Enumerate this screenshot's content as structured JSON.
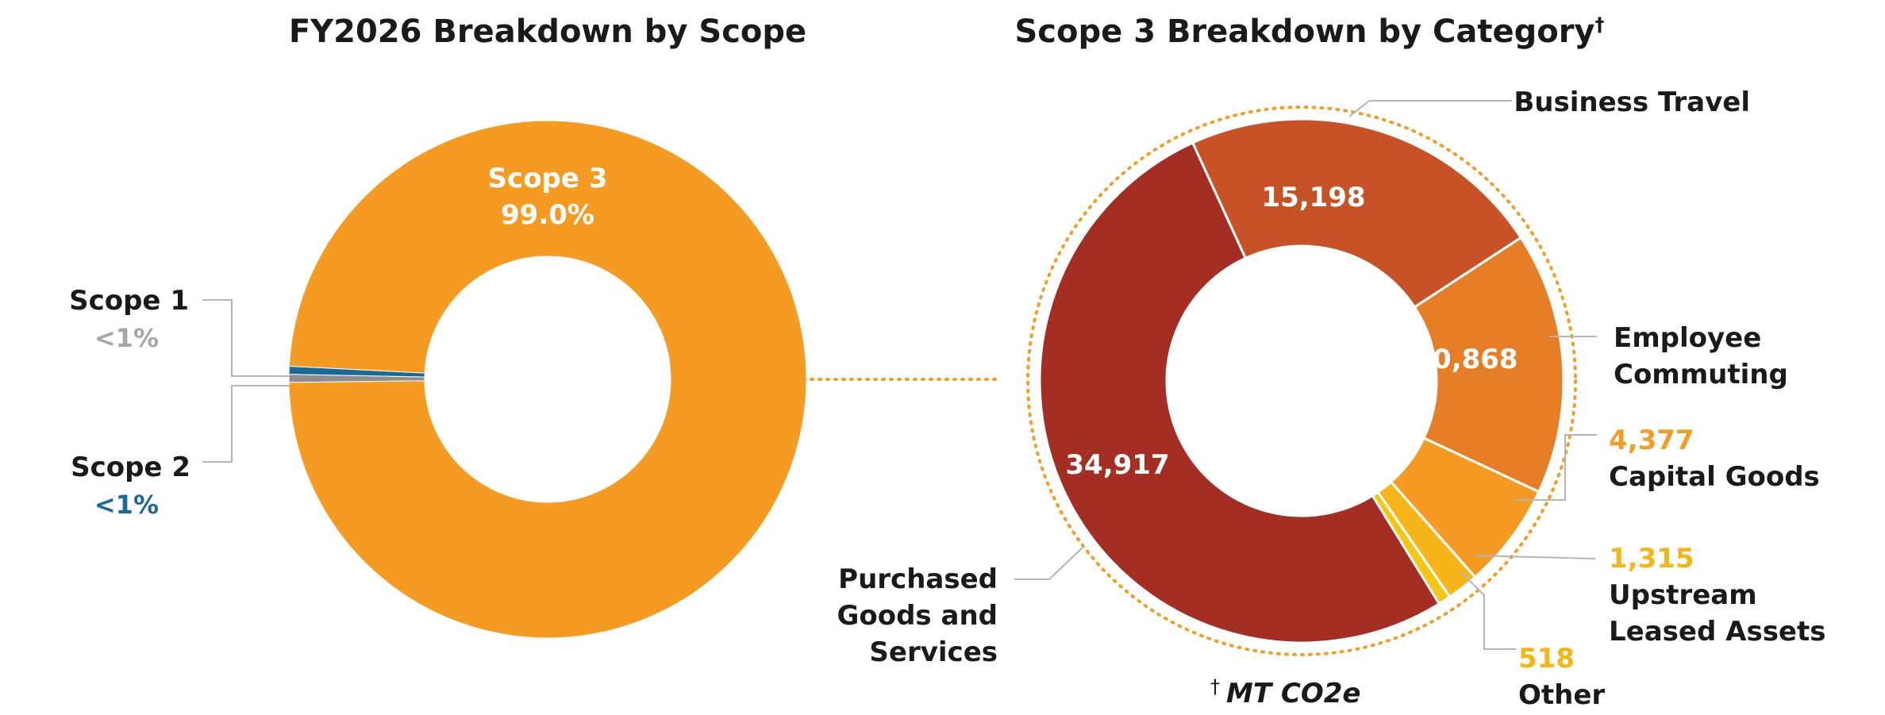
{
  "chart_data": [
    {
      "type": "pie",
      "title": "FY2026 Breakdown by Scope",
      "categories": [
        "Scope 1",
        "Scope 2",
        "Scope 3"
      ],
      "percent_labels": [
        "<1%",
        "<1%",
        "99.0%"
      ],
      "values": [
        0.5,
        0.5,
        99.0
      ],
      "colors": [
        "#8e8e8e",
        "#1b6a96",
        "#f59b23"
      ]
    },
    {
      "type": "pie",
      "title": "Scope 3 Breakdown by Category",
      "title_marker": "†",
      "categories": [
        "Business Travel",
        "Employee Commuting",
        "Capital Goods",
        "Upstream Leased Assets",
        "Other",
        "Purchased Goods and Services"
      ],
      "values": [
        15198,
        10868,
        4377,
        1315,
        518,
        34917
      ],
      "value_labels": [
        "15,198",
        "10,868",
        "4,377",
        "1,315",
        "518",
        "34,917"
      ],
      "colors": [
        "#c85227",
        "#e57e27",
        "#f59b23",
        "#f7b519",
        "#f5c518",
        "#a52e24"
      ],
      "unit_note": "MT CO2e",
      "unit_marker": "†"
    }
  ],
  "labels": {
    "scope1_lines": [
      "Scope 1"
    ],
    "scope2_lines": [
      "Scope 2"
    ],
    "scope3_lines": [
      "Scope 3"
    ],
    "business_travel_lines": [
      "Business Travel"
    ],
    "employee_commuting_lines": [
      "Employee",
      "Commuting"
    ],
    "capital_goods_lines": [
      "Capital Goods"
    ],
    "upstream_lines": [
      "Upstream",
      "Leased Assets"
    ],
    "other_lines": [
      "Other"
    ],
    "purchased_lines": [
      "Purchased",
      "Goods and",
      "Services"
    ]
  }
}
